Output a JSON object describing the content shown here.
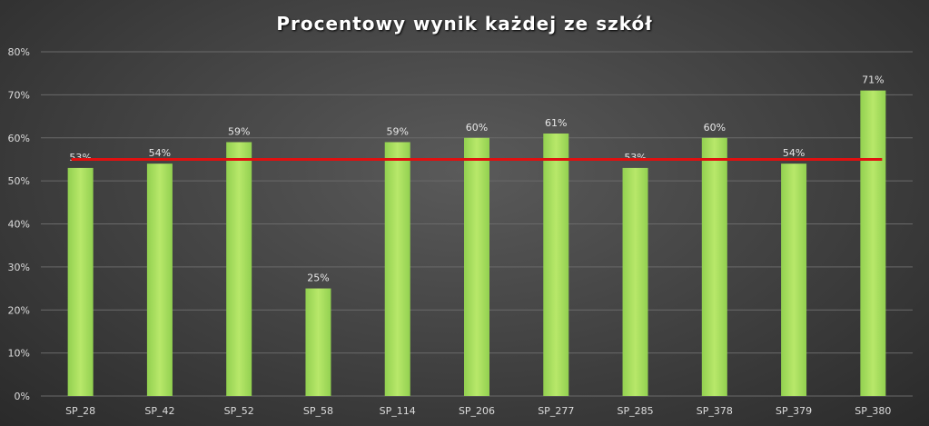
{
  "chart_data": {
    "type": "bar",
    "title": "Procentowy wynik każdej ze szkół",
    "xlabel": "",
    "ylabel": "",
    "categories": [
      "SP_28",
      "SP_42",
      "SP_52",
      "SP_58",
      "SP_114",
      "SP_206",
      "SP_277",
      "SP_285",
      "SP_378",
      "SP_379",
      "SP_380"
    ],
    "values": [
      53,
      54,
      59,
      25,
      59,
      60,
      61,
      53,
      60,
      54,
      71
    ],
    "data_labels": [
      "53%",
      "54%",
      "59%",
      "25%",
      "59%",
      "60%",
      "61%",
      "53%",
      "60%",
      "54%",
      "71%"
    ],
    "ylim": [
      0,
      80
    ],
    "yticks": [
      0,
      10,
      20,
      30,
      40,
      50,
      60,
      70,
      80
    ],
    "ytick_labels": [
      "0%",
      "10%",
      "20%",
      "30%",
      "40%",
      "50%",
      "60%",
      "70%",
      "80%"
    ],
    "reference_line": {
      "value": 55,
      "color": "#e01010"
    },
    "grid": true,
    "legend": "none",
    "colors": {
      "bar": "#92d050",
      "bar_light": "#b8e86a",
      "grid": "#6a6a6a",
      "text": "#dcdcdc",
      "background": "#404040"
    }
  }
}
